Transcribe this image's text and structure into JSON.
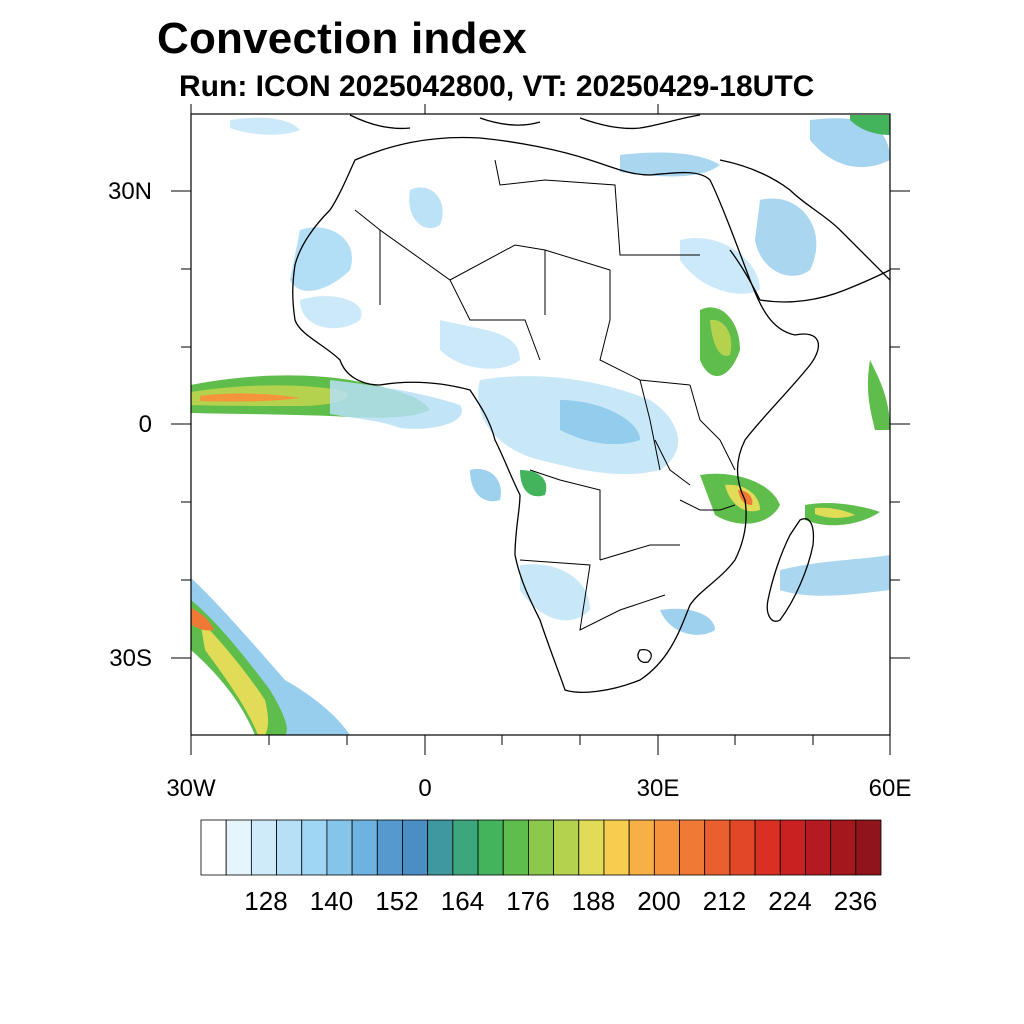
{
  "title": "Convection index",
  "subtitle": "Run: ICON 2025042800,  VT: 20250429-18UTC",
  "map": {
    "region": "Africa",
    "lon_range": [
      -30,
      60
    ],
    "lat_range": [
      -40,
      40
    ],
    "lat_labels": [
      "30N",
      "0",
      "30S"
    ],
    "lon_labels": [
      "30W",
      "0",
      "30E",
      "60E"
    ],
    "coastline_color": "#000000"
  },
  "colorbar": {
    "labels": [
      "128",
      "140",
      "152",
      "164",
      "176",
      "188",
      "200",
      "212",
      "224",
      "236"
    ],
    "colors": [
      "#ffffff",
      "#e6f4fb",
      "#cfeaf8",
      "#b6e0f6",
      "#9fd6f4",
      "#86c5ea",
      "#6db2e1",
      "#5699cf",
      "#4a8ec4",
      "#3f97a0",
      "#3ea67c",
      "#43b35c",
      "#5fbd4b",
      "#8cc84b",
      "#b4d24e",
      "#e0dc57",
      "#f6cd4f",
      "#f7b046",
      "#f6943d",
      "#f07a35",
      "#ea5f2e",
      "#e24728",
      "#d93024",
      "#c92022",
      "#b51a20",
      "#a3171d",
      "#8f141b"
    ]
  }
}
